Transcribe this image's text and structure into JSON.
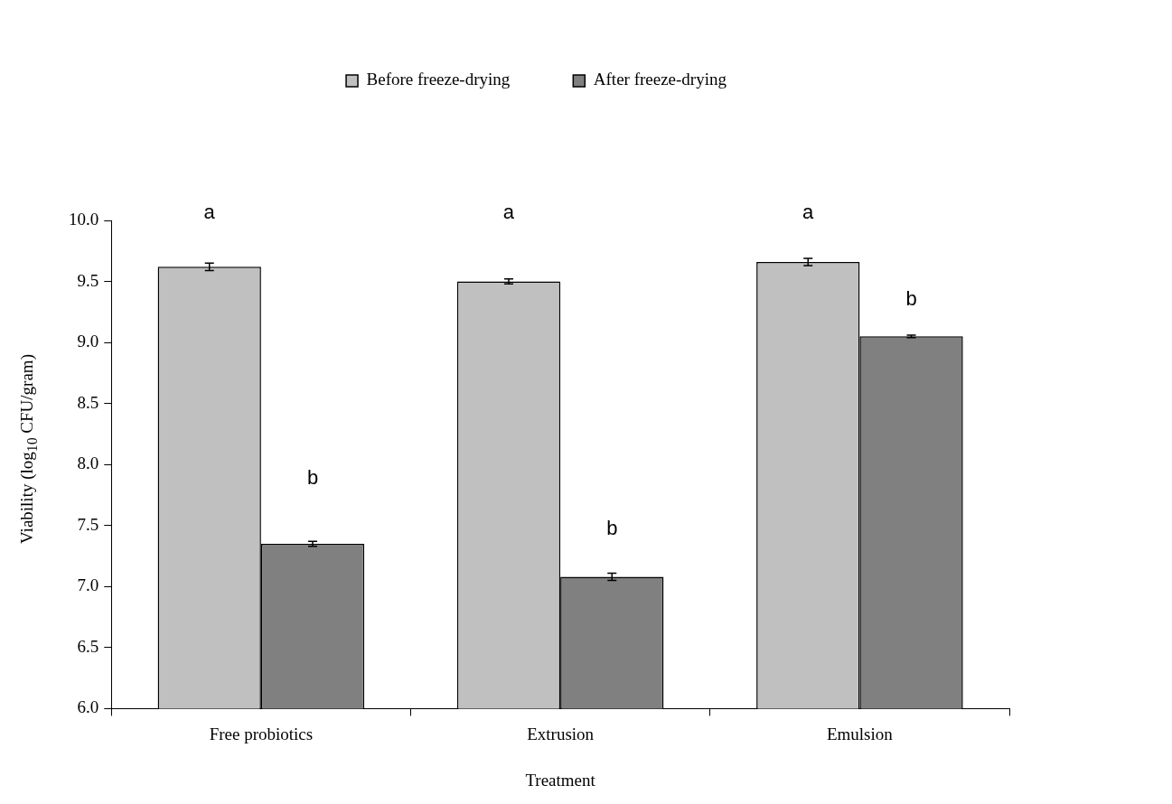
{
  "chart_data": {
    "type": "bar",
    "xlabel": "Treatment",
    "ylabel": "Viability (log$_{10}$ CFU/gram)",
    "categories": [
      "Free probiotics",
      "Extrusion",
      "Emulsion"
    ],
    "series": [
      {
        "name": "Before freeze-drying",
        "color": "#c0c0c0",
        "values": [
          9.62,
          9.5,
          9.66
        ],
        "errors": [
          0.03,
          0.02,
          0.03
        ]
      },
      {
        "name": "After freeze-drying",
        "color": "#808080",
        "values": [
          7.35,
          7.08,
          9.05
        ],
        "errors": [
          0.02,
          0.03,
          0.01
        ]
      }
    ],
    "ylim": [
      6,
      10
    ],
    "yticks": [
      {
        "value": 6,
        "label": "6.0"
      },
      {
        "value": 6.5,
        "label": "6.5"
      },
      {
        "value": 7,
        "label": "7.0"
      },
      {
        "value": 7.5,
        "label": "7.5"
      },
      {
        "value": 8,
        "label": "8.0"
      },
      {
        "value": 8.5,
        "label": "8.5"
      },
      {
        "value": 9,
        "label": "9.0"
      },
      {
        "value": 9.5,
        "label": "9.5"
      },
      {
        "value": 10,
        "label": "10.0"
      }
    ],
    "annotations": [
      "a",
      {
        "text": "b",
        "x": "Free probiotics",
        "y": 7.88
      },
      "a",
      {
        "text": "b",
        "x": "Extrusion",
        "y": 7.47
      },
      "a",
      {
        "text": "b",
        "x": "Emulsion",
        "y": 9.35
      }
    ],
    "grid": false,
    "legend": "top"
  }
}
